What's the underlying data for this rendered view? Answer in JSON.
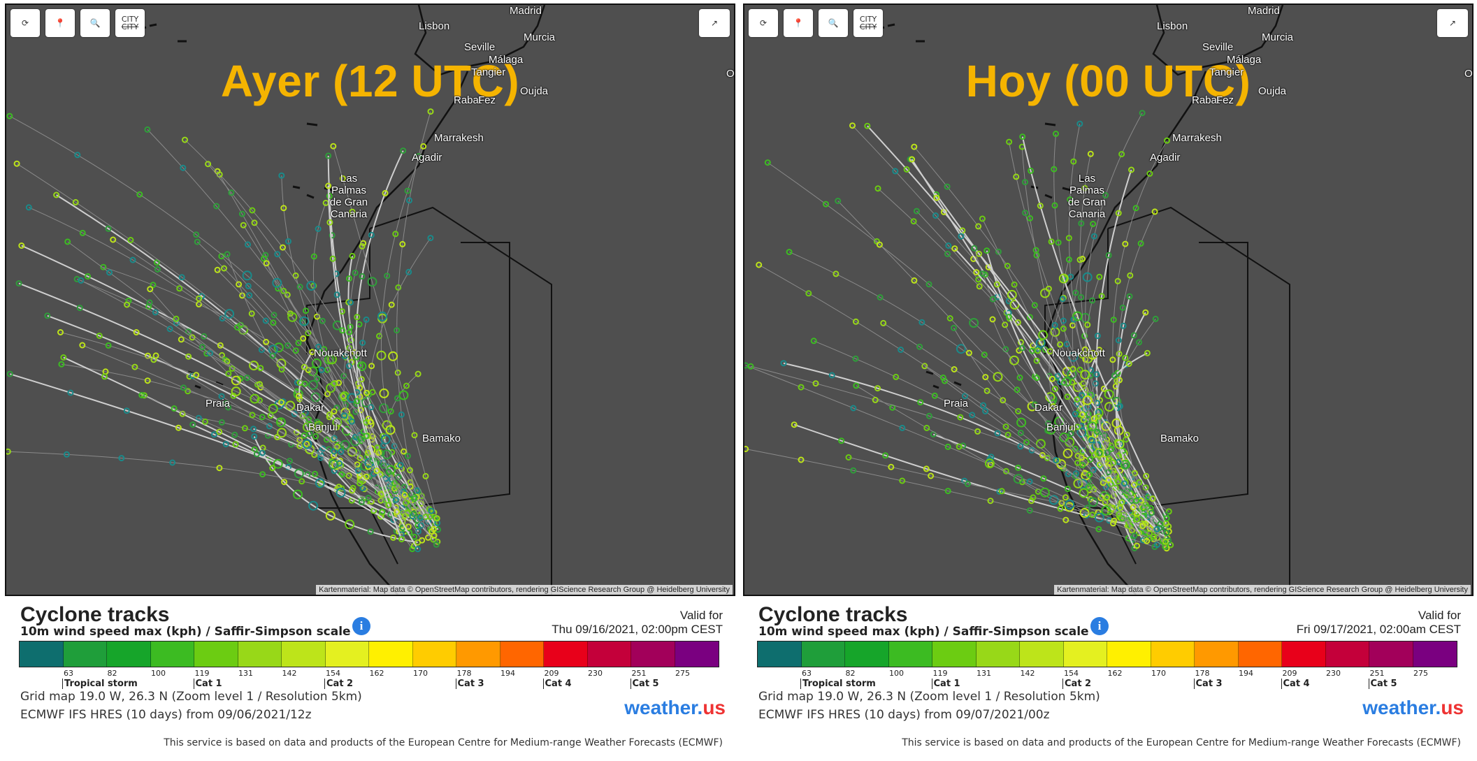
{
  "panels": [
    {
      "overlay_title": "Ayer (12 UTC)",
      "legend": {
        "title": "Cyclone tracks",
        "subtitle": "10m wind speed max (kph) / Saffir-Simpson scale",
        "valid_label": "Valid for",
        "valid_time": "Thu 09/16/2021, 02:00pm CEST",
        "grid": "Grid map 19.0 W, 26.3 N (Zoom level 1 / Resolution 5km)",
        "model": "ECMWF IFS HRES (10 days) from 09/06/2021/12z"
      }
    },
    {
      "overlay_title": "Hoy (00 UTC)",
      "legend": {
        "title": "Cyclone tracks",
        "subtitle": "10m wind speed max (kph) / Saffir-Simpson scale",
        "valid_label": "Valid for",
        "valid_time": "Fri 09/17/2021, 02:00am CEST",
        "grid": "Grid map 19.0 W, 26.3 N (Zoom level 1 / Resolution 5km)",
        "model": "ECMWF IFS HRES (10 days) from 09/07/2021/00z"
      }
    }
  ],
  "cities": [
    {
      "name": "Lisbon"
    },
    {
      "name": "Seville"
    },
    {
      "name": "Málaga"
    },
    {
      "name": "Tangier"
    },
    {
      "name": "Rabat"
    },
    {
      "name": "Fez"
    },
    {
      "name": "Oujda"
    },
    {
      "name": "Marrakesh"
    },
    {
      "name": "Agadir"
    },
    {
      "name": "Las Palmas de Gran Canaria"
    },
    {
      "name": "Nouakchott"
    },
    {
      "name": "Praia"
    },
    {
      "name": "Dakar"
    },
    {
      "name": "Banjul"
    },
    {
      "name": "Bamako"
    },
    {
      "name": "Murcia"
    },
    {
      "name": "Ora"
    },
    {
      "name": "Madrid"
    }
  ],
  "attribution": "Kartenmaterial: Map data © OpenStreetMap contributors, rendering GIScience Research Group @ Heidelberg University",
  "controls": {
    "city_label": "CITY"
  },
  "scale": {
    "colors": [
      "#0e6e6e",
      "#1f9e3a",
      "#16a52a",
      "#3cbb22",
      "#6ccc12",
      "#98d818",
      "#bde41a",
      "#e4f020",
      "#fff000",
      "#ffcc00",
      "#ff9900",
      "#ff6600",
      "#e8001a",
      "#c4003a",
      "#a2005a",
      "#7a0080"
    ],
    "ticks": [
      "63",
      "82",
      "100",
      "119",
      "131",
      "142",
      "154",
      "162",
      "170",
      "178",
      "194",
      "209",
      "230",
      "251",
      "275"
    ],
    "categories": [
      "Tropical storm",
      "Cat 1",
      "Cat 2",
      "Cat 3",
      "Cat 4",
      "Cat 5"
    ]
  },
  "brand": {
    "text": "weather.",
    "suffix": "us"
  },
  "footer": "This service is based on data and products of the European Centre for Medium-range Weather Forecasts (ECMWF)"
}
